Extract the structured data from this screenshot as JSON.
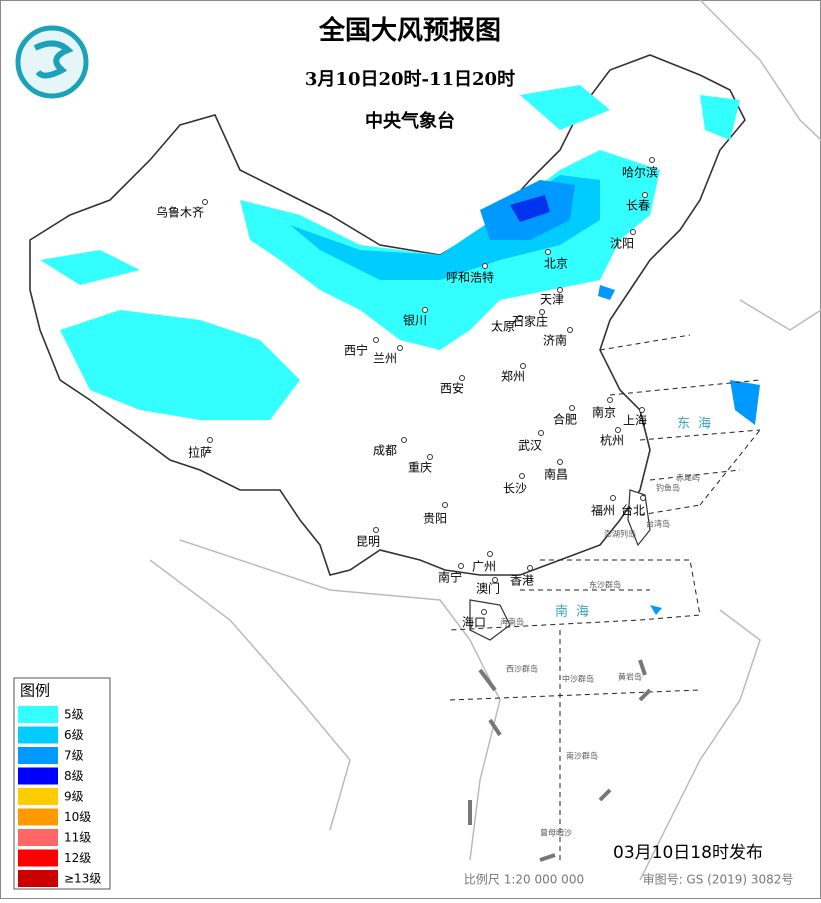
{
  "header": {
    "title": "全国大风预报图",
    "subtitle": "3月10日20时-11日20时",
    "agency": "中央气象台"
  },
  "legend": {
    "title": "图例",
    "items": [
      {
        "label": "5级",
        "color": "#33ffff"
      },
      {
        "label": "6级",
        "color": "#00ccff"
      },
      {
        "label": "7级",
        "color": "#0099ff"
      },
      {
        "label": "8级",
        "color": "#0000ff"
      },
      {
        "label": "9级",
        "color": "#ffcc00"
      },
      {
        "label": "10级",
        "color": "#ff9900"
      },
      {
        "label": "11级",
        "color": "#ff6666"
      },
      {
        "label": "12级",
        "color": "#ff0000"
      },
      {
        "label": "≥13级",
        "color": "#cc0000"
      }
    ]
  },
  "cities": [
    "乌鲁木齐",
    "哈尔滨",
    "长春",
    "沈阳",
    "北京",
    "呼和浩特",
    "天津",
    "银川",
    "太原",
    "石家庄",
    "济南",
    "西宁",
    "兰州",
    "郑州",
    "西安",
    "合肥",
    "南京",
    "上海",
    "成都",
    "武汉",
    "杭州",
    "重庆",
    "南昌",
    "拉萨",
    "长沙",
    "福州",
    "台北",
    "贵阳",
    "昆明",
    "南宁",
    "广州",
    "澳门",
    "香港",
    "海口"
  ],
  "places": [
    "东沙群岛",
    "海南岛",
    "西沙群岛",
    "中沙群岛",
    "黄岩岛",
    "南沙群岛",
    "曾母暗沙",
    "钓鱼岛",
    "赤尾屿",
    "台湾岛",
    "澎湖列岛"
  ],
  "seas": [
    "东海",
    "南海"
  ],
  "footer": {
    "issued": "03月10日18时发布",
    "scale": "比例尺 1:20 000 000",
    "review": "审图号: GS (2019) 3082号"
  }
}
